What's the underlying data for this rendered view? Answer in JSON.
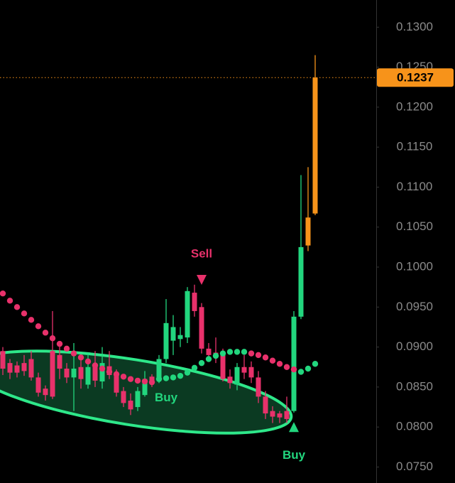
{
  "chart_data": {
    "type": "candlestick",
    "categories": [
      null,
      null,
      null,
      null,
      null,
      null,
      null,
      null,
      null,
      null,
      null,
      null,
      null,
      null,
      null,
      null,
      null,
      null,
      null,
      null,
      null,
      null,
      null,
      null,
      null,
      null,
      null,
      null,
      null,
      null,
      null,
      null,
      null,
      null,
      null,
      null,
      null,
      null,
      null,
      null,
      null,
      null,
      null,
      null,
      null
    ],
    "open": [
      0.0895,
      0.088,
      0.0877,
      0.088,
      0.0885,
      0.0862,
      0.0848,
      0.0895,
      0.089,
      0.0873,
      0.0862,
      0.0875,
      0.0853,
      0.0877,
      0.0857,
      0.0876,
      0.0865,
      0.0845,
      0.0833,
      0.0825,
      0.084,
      0.0863,
      0.086,
      0.0885,
      0.0908,
      0.091,
      0.0912,
      0.0968,
      0.095,
      0.0898,
      0.0893,
      0.0893,
      0.0863,
      0.0853,
      0.0875,
      0.0875,
      0.0862,
      0.0838,
      0.082,
      0.0817,
      0.082,
      0.082,
      0.0938,
      0.1027,
      0.1067
    ],
    "high": [
      0.09,
      0.0885,
      0.0882,
      0.089,
      0.0895,
      0.0868,
      0.0852,
      0.0945,
      0.0902,
      0.088,
      0.0905,
      0.0885,
      0.0892,
      0.0895,
      0.09,
      0.0895,
      0.0872,
      0.085,
      0.0842,
      0.085,
      0.087,
      0.0866,
      0.089,
      0.096,
      0.094,
      0.0925,
      0.0975,
      0.0978,
      0.0955,
      0.0905,
      0.0912,
      0.0898,
      0.0872,
      0.088,
      0.089,
      0.0882,
      0.087,
      0.0845,
      0.0826,
      0.082,
      0.0838,
      0.0945,
      0.1115,
      0.1125,
      0.1265
    ],
    "low": [
      0.0865,
      0.086,
      0.0862,
      0.0864,
      0.0858,
      0.0838,
      0.0833,
      0.0835,
      0.086,
      0.0855,
      0.082,
      0.0848,
      0.0848,
      0.085,
      0.0848,
      0.086,
      0.0838,
      0.0825,
      0.0815,
      0.082,
      0.0838,
      0.085,
      0.0855,
      0.088,
      0.089,
      0.09,
      0.0905,
      0.0938,
      0.0892,
      0.0885,
      0.088,
      0.0857,
      0.0848,
      0.0846,
      0.086,
      0.0855,
      0.083,
      0.081,
      0.0805,
      0.0805,
      0.0805,
      0.0818,
      0.0935,
      0.102,
      0.1065
    ],
    "close": [
      0.0873,
      0.0868,
      0.0868,
      0.087,
      0.0862,
      0.0843,
      0.084,
      0.0838,
      0.0873,
      0.0862,
      0.0873,
      0.086,
      0.0875,
      0.0858,
      0.088,
      0.0865,
      0.0843,
      0.083,
      0.0822,
      0.0845,
      0.086,
      0.0857,
      0.0885,
      0.093,
      0.0925,
      0.0915,
      0.097,
      0.0945,
      0.0898,
      0.089,
      0.0888,
      0.086,
      0.0855,
      0.0875,
      0.0868,
      0.0862,
      0.0838,
      0.0817,
      0.0813,
      0.0812,
      0.081,
      0.0938,
      0.1025,
      0.1062,
      0.1237
    ],
    "colors": [
      "#e8316b",
      "#e8316b",
      "#e8316b",
      "#e8316b",
      "#e8316b",
      "#e8316b",
      "#e8316b",
      "#e8316b",
      "#e8316b",
      "#e8316b",
      "#22d67e",
      "#e8316b",
      "#22d67e",
      "#e8316b",
      "#22d67e",
      "#e8316b",
      "#e8316b",
      "#e8316b",
      "#e8316b",
      "#22d67e",
      "#22d67e",
      "#e8316b",
      "#22d67e",
      "#22d67e",
      "#22d67e",
      "#22d67e",
      "#22d67e",
      "#e8316b",
      "#e8316b",
      "#e8316b",
      "#e8316b",
      "#e8316b",
      "#e8316b",
      "#22d67e",
      "#e8316b",
      "#e8316b",
      "#e8316b",
      "#e8316b",
      "#e8316b",
      "#e8316b",
      "#e8316b",
      "#22d67e",
      "#22d67e",
      "#f7931a",
      "#f7931a"
    ],
    "dots": {
      "values": [
        0.0967,
        0.0958,
        0.095,
        0.0942,
        0.0934,
        0.0926,
        0.0918,
        0.0911,
        0.0904,
        0.0898,
        0.0892,
        0.0887,
        0.0882,
        0.0877,
        0.0873,
        0.0869,
        0.0866,
        0.0863,
        0.086,
        0.0858,
        0.0857,
        0.0856,
        0.086,
        0.0861,
        0.0862,
        0.0864,
        0.0868,
        0.0874,
        0.088,
        0.0885,
        0.0889,
        0.0892,
        0.0894,
        0.0894,
        0.0894,
        0.0892,
        0.089,
        0.0887,
        0.0883,
        0.0879,
        0.0875,
        0.0872,
        0.0869,
        0.0873,
        0.0879
      ],
      "colors": [
        "#e8316b",
        "#e8316b",
        "#e8316b",
        "#e8316b",
        "#e8316b",
        "#e8316b",
        "#e8316b",
        "#e8316b",
        "#e8316b",
        "#e8316b",
        "#e8316b",
        "#e8316b",
        "#e8316b",
        "#e8316b",
        "#e8316b",
        "#e8316b",
        "#e8316b",
        "#e8316b",
        "#e8316b",
        "#e8316b",
        "#e8316b",
        "#e8316b",
        "#22d67e",
        "#22d67e",
        "#22d67e",
        "#22d67e",
        "#22d67e",
        "#22d67e",
        "#22d67e",
        "#22d67e",
        "#22d67e",
        "#22d67e",
        "#22d67e",
        "#22d67e",
        "#22d67e",
        "#e8316b",
        "#e8316b",
        "#e8316b",
        "#e8316b",
        "#e8316b",
        "#e8316b",
        "#e8316b",
        "#22d67e",
        "#22d67e",
        "#22d67e"
      ]
    },
    "ylim": [
      0.073,
      0.1334
    ],
    "yticks": [
      {
        "value": 0.13,
        "label": "0.1300"
      },
      {
        "value": 0.125,
        "label": "0.1250"
      },
      {
        "value": 0.12,
        "label": "0.1200"
      },
      {
        "value": 0.115,
        "label": "0.1150"
      },
      {
        "value": 0.11,
        "label": "0.1100"
      },
      {
        "value": 0.105,
        "label": "0.1050"
      },
      {
        "value": 0.1,
        "label": "0.1000"
      },
      {
        "value": 0.095,
        "label": "0.0950"
      },
      {
        "value": 0.09,
        "label": "0.0900"
      },
      {
        "value": 0.085,
        "label": "0.0850"
      },
      {
        "value": 0.08,
        "label": "0.0800"
      },
      {
        "value": 0.075,
        "label": "0.0750"
      }
    ],
    "last_price": 0.1237,
    "last_price_color": "#f7931a",
    "annotations": [
      {
        "text": "Sell",
        "index": 28,
        "price": 0.1016,
        "marker": 0.0984,
        "color": "#e8316b",
        "direction": "down"
      },
      {
        "text": "Buy",
        "index": 23,
        "price": 0.0836,
        "color": "#22d67e"
      },
      {
        "text": "Buy",
        "index": 41,
        "price": 0.0764,
        "marker": 0.08,
        "color": "#22d67e",
        "direction": "up"
      }
    ]
  }
}
